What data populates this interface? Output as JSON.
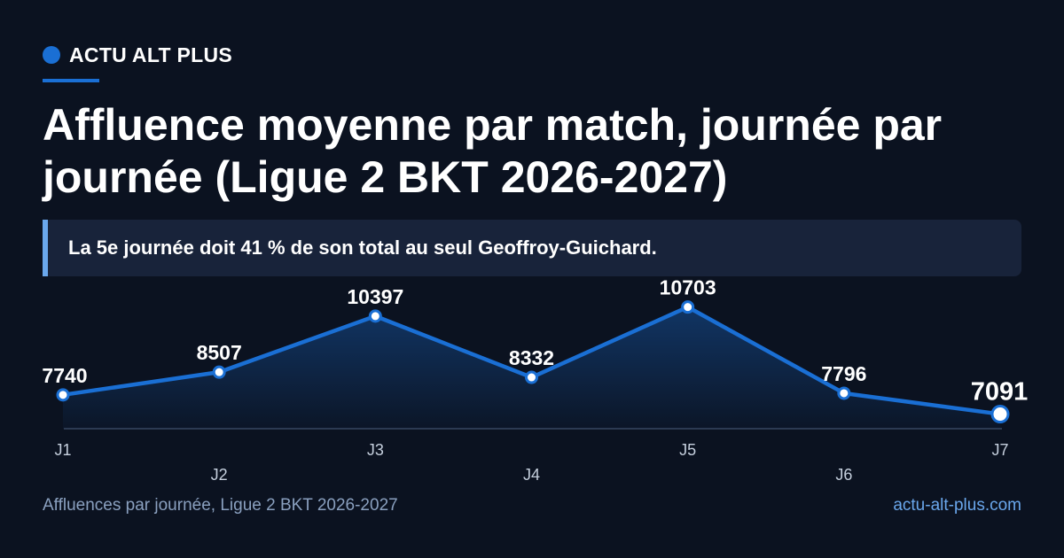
{
  "brand": {
    "name": "ACTU ALT PLUS"
  },
  "title": "Affluence moyenne par match, journée par journée (Ligue 2 BKT 2026-2027)",
  "callout": "La 5e journée doit 41 % de son total au seul Geoffroy-Guichard.",
  "footer": {
    "source": "Affluences par journée, Ligue 2 BKT 2026-2027",
    "url": "actu-alt-plus.com"
  },
  "colors": {
    "background": "#0b1220",
    "accent": "#1a6fd4",
    "callout_bg": "#18233a",
    "callout_bar": "#6aa7ec",
    "muted_text": "#8aa0bf"
  },
  "chart_data": {
    "type": "area",
    "categories": [
      "J1",
      "J2",
      "J3",
      "J4",
      "J5",
      "J6",
      "J7"
    ],
    "values": [
      7740,
      8507,
      10397,
      8332,
      10703,
      7796,
      7091
    ],
    "title": "",
    "xlabel": "",
    "ylabel": "",
    "ylim": [
      6600,
      11200
    ],
    "grid": false,
    "legend": "none",
    "data_labels": true,
    "highlight_last": true
  }
}
